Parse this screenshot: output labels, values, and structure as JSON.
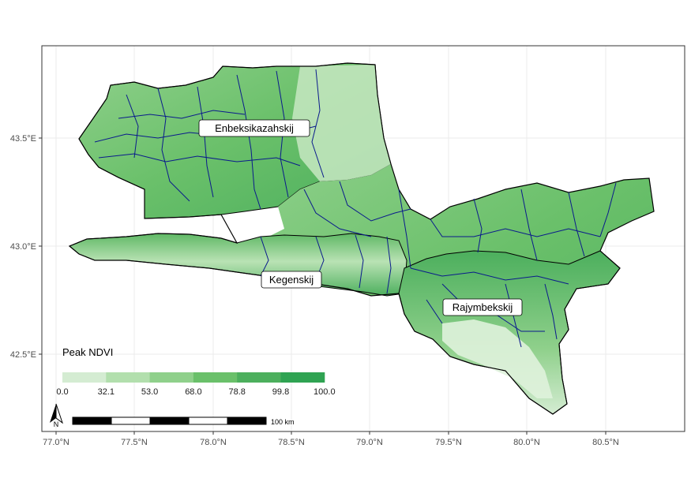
{
  "map": {
    "x_axis_ticks": [
      "77.0°N",
      "77.5°N",
      "78.0°N",
      "78.5°N",
      "79.0°N",
      "79.5°N",
      "80.0°N",
      "80.5°N"
    ],
    "y_axis_ticks": [
      "43.5°E",
      "43.0°E",
      "42.5°E"
    ],
    "regions": [
      {
        "name": "Enbeksikazahskij"
      },
      {
        "name": "Kegenskij"
      },
      {
        "name": "Rajymbekskij"
      }
    ],
    "legend": {
      "title": "Peak NDVI",
      "breaks": [
        "0.0",
        "32.1",
        "53.0",
        "68.0",
        "78.8",
        "99.8",
        "100.0"
      ],
      "colors": [
        "#d4ecd2",
        "#b2dfad",
        "#8fd08b",
        "#6ac06a",
        "#4caf5d",
        "#2fa352"
      ]
    },
    "scale_bar": {
      "label": "100 km"
    },
    "north_arrow": {
      "label": "N"
    },
    "colors": {
      "boundary": "#0a1a8c",
      "district_outline": "#000000",
      "panel_border": "#333333",
      "grid": "#ebebeb"
    }
  }
}
